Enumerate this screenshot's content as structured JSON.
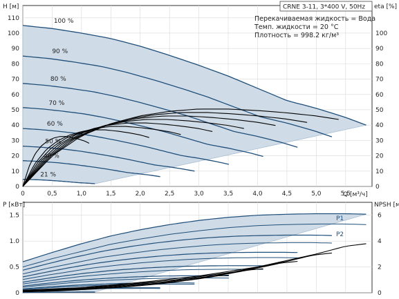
{
  "title": "CRNE 3-11, 3*400 V, 50Hz",
  "info_lines": [
    "Перекачиваемая жидкость = Вода",
    "Темп. жидкости = 20 °C",
    "Плотность = 998.2 кг/м³"
  ],
  "colors": {
    "envelope_fill": "#cfdbe7",
    "envelope_stroke": "#a9bed2",
    "curve": "#1f4e79",
    "black": "#000000",
    "grid": "#d9d9d9"
  },
  "chart_data": [
    {
      "type": "line",
      "name": "head-eta",
      "xlabel": "Q [м³/ч]",
      "ylabel": "H [м]",
      "y2label": "eta [%]",
      "x_ticks": [
        "0",
        "0,5",
        "1,0",
        "1,5",
        "2,0",
        "2,5",
        "3,0",
        "3,5",
        "4,0",
        "4,5",
        "5,0",
        "5,5"
      ],
      "y_ticks": [
        "0",
        "10",
        "20",
        "30",
        "40",
        "50",
        "60",
        "70",
        "80",
        "90",
        "100",
        "110"
      ],
      "y2_ticks": [
        "0",
        "10",
        "20",
        "30",
        "40",
        "50",
        "60",
        "70",
        "80",
        "90",
        "100"
      ],
      "xlim": [
        0,
        5.95
      ],
      "ylim": [
        0,
        118
      ],
      "y2lim": [
        0,
        118
      ],
      "grid": true,
      "speed_labels": [
        "100 %",
        "90 %",
        "80 %",
        "70 %",
        "60 %",
        "50 %",
        "40 %",
        "21 %"
      ],
      "speeds": [
        1.0,
        0.9,
        0.8,
        0.7,
        0.6,
        0.5,
        0.4,
        0.21
      ],
      "head_curve_100": {
        "q": [
          0,
          0.5,
          1.0,
          1.5,
          2.0,
          2.5,
          3.0,
          3.5,
          4.0,
          4.5,
          5.0,
          5.5,
          5.85
        ],
        "h": [
          105,
          103,
          100,
          96.5,
          91.5,
          85.5,
          79,
          72,
          64,
          56,
          51,
          45,
          40
        ]
      },
      "eta_curve_100": {
        "q": [
          0,
          0.5,
          1.0,
          1.5,
          2.0,
          2.5,
          3.0,
          3.5,
          4.0,
          4.5,
          5.0,
          5.5,
          5.85
        ],
        "eta": [
          0,
          20,
          33,
          41,
          46,
          49,
          50.5,
          50.5,
          49.5,
          48,
          46,
          43,
          40
        ]
      }
    },
    {
      "type": "line",
      "name": "power-npsh",
      "xlabel": "",
      "ylabel": "P [кВт]",
      "y2label": "NPSH [м]",
      "y_ticks": [
        "0",
        "0.5",
        "1.0",
        "1.5"
      ],
      "y2_ticks": [
        "0",
        "2",
        "4",
        "6"
      ],
      "xlim": [
        0,
        5.95
      ],
      "ylim": [
        0,
        1.75
      ],
      "y2lim": [
        0,
        7
      ],
      "grid": true,
      "series_labels": [
        "P1",
        "P2"
      ],
      "p1_curve_100": {
        "q": [
          0,
          0.5,
          1.0,
          1.5,
          2.0,
          2.5,
          3.0,
          3.5,
          4.0,
          4.5,
          5.0,
          5.5,
          5.85
        ],
        "p": [
          0.6,
          0.78,
          0.95,
          1.1,
          1.22,
          1.32,
          1.4,
          1.46,
          1.5,
          1.52,
          1.53,
          1.53,
          1.52
        ]
      },
      "p2_curve_100": {
        "q": [
          0,
          0.5,
          1.0,
          1.5,
          2.0,
          2.5,
          3.0,
          3.5,
          4.0,
          4.5,
          5.0,
          5.5,
          5.85
        ],
        "p": [
          0.5,
          0.66,
          0.8,
          0.94,
          1.04,
          1.13,
          1.2,
          1.26,
          1.3,
          1.32,
          1.33,
          1.33,
          1.32
        ]
      },
      "npsh_curve": {
        "q": [
          0,
          1.0,
          2.0,
          3.0,
          4.0,
          4.5,
          5.0,
          5.5,
          5.85
        ],
        "npsh": [
          0.2,
          0.4,
          0.8,
          1.3,
          2.0,
          2.5,
          3.0,
          3.6,
          3.8
        ]
      }
    }
  ]
}
